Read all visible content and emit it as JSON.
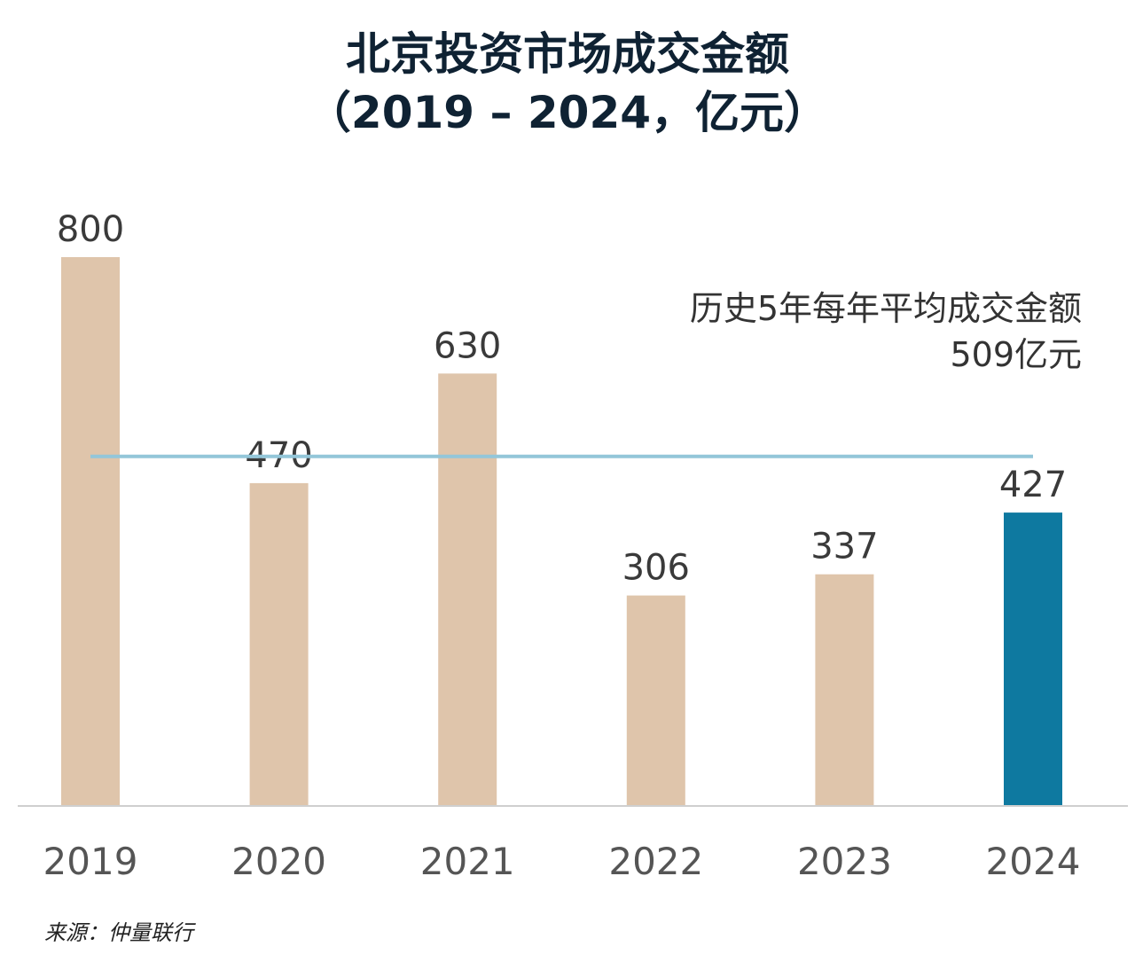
{
  "chart_data": {
    "type": "bar",
    "title": "北京投资市场成交金额",
    "subtitle": "（2019 – 2024，亿元）",
    "categories": [
      "2019",
      "2020",
      "2021",
      "2022",
      "2023",
      "2024"
    ],
    "values": [
      800,
      470,
      630,
      306,
      337,
      427
    ],
    "ylim": [
      0,
      800
    ],
    "grid": false,
    "bar_color": "#dfc5ab",
    "highlight_color": "#0e79a0",
    "highlight_index": 5,
    "average": {
      "value": 509,
      "label_line1": "历史5年每年平均成交金额",
      "label_line2": "509亿元",
      "line_color": "#93c6d9"
    },
    "source": "来源：仲量联行"
  }
}
